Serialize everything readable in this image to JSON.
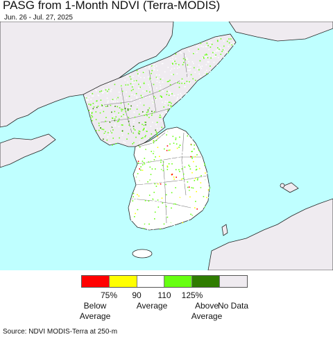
{
  "title": "PASG from 1-Month NDVI (Terra-MODIS)",
  "subtitle": "Jun. 26 - Jul. 27, 2025",
  "colors": {
    "water": "#bfffff",
    "land_nodata": "#efebf0",
    "border": "#666666",
    "coast": "#222222"
  },
  "legend": {
    "swatches": [
      {
        "color": "#ff0000"
      },
      {
        "color": "#ffff00"
      },
      {
        "color": "#ffffff"
      },
      {
        "color": "#66ff11"
      },
      {
        "color": "#2f7c00"
      },
      {
        "color": "#efebf0"
      }
    ],
    "ticks": [
      "75%",
      "90",
      "110",
      "125%"
    ],
    "categories": {
      "below_line1": "Below",
      "below_line2": "Average",
      "average": "Average",
      "above_line1": "Above",
      "above_line2": "Average",
      "no_data": "No Data"
    }
  },
  "source": "Source: NDVI MODIS-Terra at 250-m"
}
